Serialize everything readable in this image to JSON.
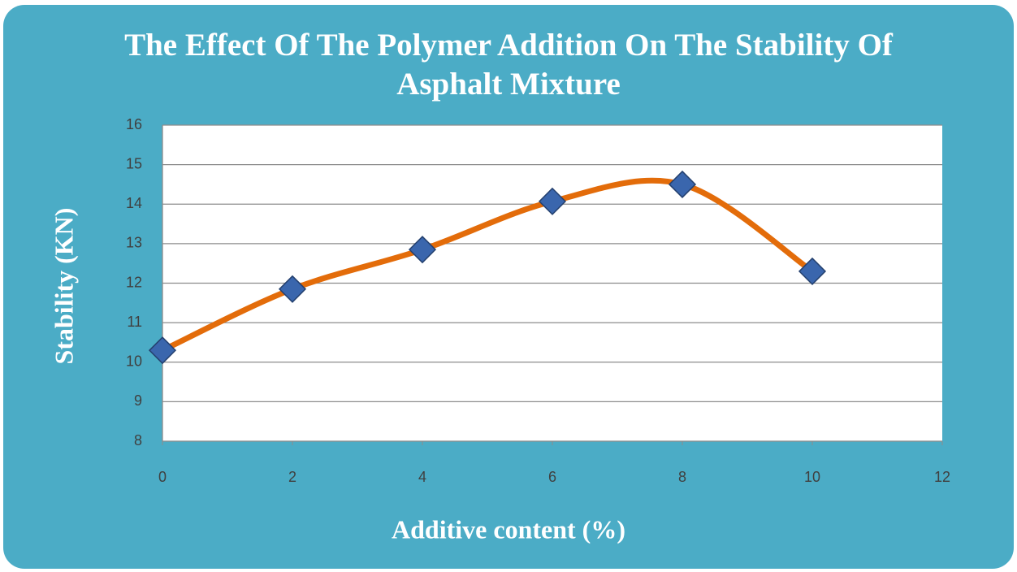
{
  "chart_data": {
    "type": "line",
    "title": "The Effect Of The Polymer Addition On The Stability Of Asphalt Mixture",
    "x_label": "Additive content (%)",
    "y_label": "Stability (KN)",
    "x": [
      0,
      2,
      4,
      6,
      8,
      10
    ],
    "series": [
      {
        "name": "Stability",
        "color": "#e36c0a",
        "marker_color": "#3a66ad",
        "values": [
          10.3,
          11.85,
          12.85,
          14.07,
          14.5,
          12.3
        ]
      }
    ],
    "xlim": [
      0,
      12
    ],
    "xticks": [
      0,
      2,
      4,
      6,
      8,
      10,
      12
    ],
    "ylim": [
      8,
      16
    ],
    "yticks": [
      8,
      9,
      10,
      11,
      12,
      13,
      14,
      15,
      16
    ],
    "grid": true,
    "smooth": true
  }
}
